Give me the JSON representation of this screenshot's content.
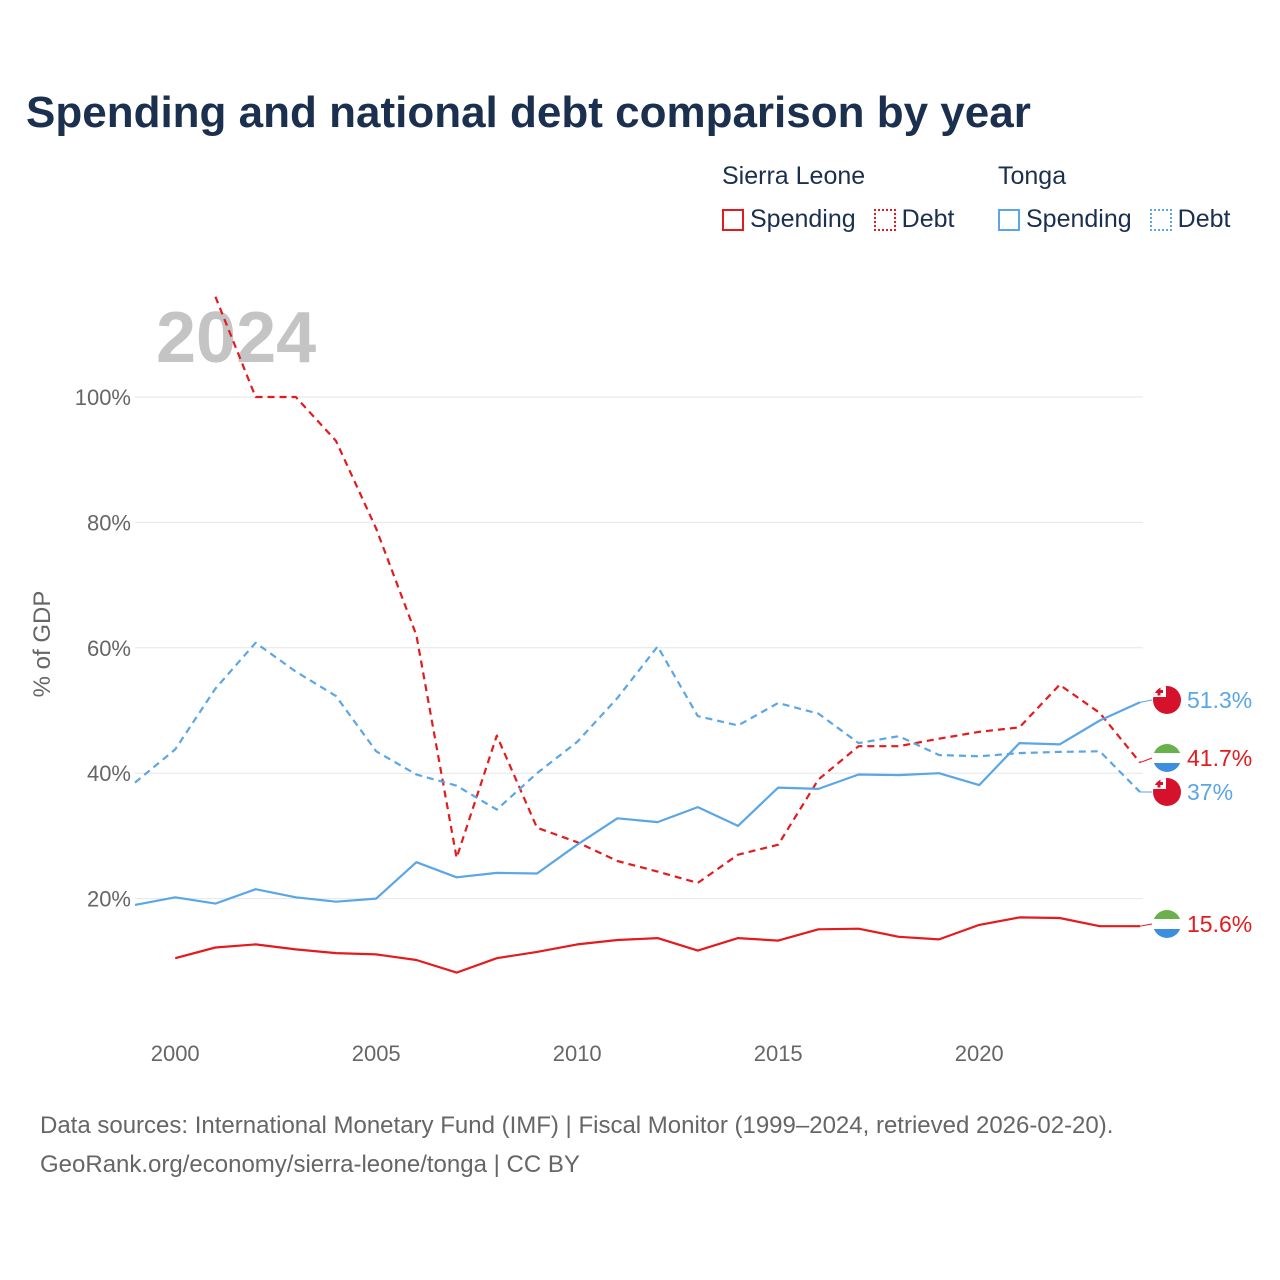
{
  "title": "Spending and national debt comparison by year",
  "legend": {
    "groups": [
      {
        "country": "Sierra Leone",
        "color": "#e41a1c",
        "items": [
          {
            "label": "Spending",
            "style": "solid"
          },
          {
            "label": "Debt",
            "style": "dotted"
          }
        ]
      },
      {
        "country": "Tonga",
        "color": "#5aa6e6",
        "items": [
          {
            "label": "Spending",
            "style": "solid"
          },
          {
            "label": "Debt",
            "style": "dotted"
          }
        ]
      }
    ]
  },
  "sources": {
    "line1": "Data sources: International Monetary Fund (IMF) | Fiscal Monitor (1999–2024, retrieved 2026-02-20).",
    "line2": "GeoRank.org/economy/sierra-leone/tonga | CC BY"
  },
  "chart_data": {
    "type": "line",
    "year_label": "2024",
    "ylabel": "% of GDP",
    "xlim": [
      1999,
      2024
    ],
    "ylim": [
      0,
      120
    ],
    "x_ticks": [
      2000,
      2005,
      2010,
      2015,
      2020
    ],
    "x_tick_labels": [
      "2000",
      "2005",
      "2010",
      "2015",
      "2020"
    ],
    "y_ticks": [
      20,
      40,
      60,
      80,
      100
    ],
    "y_tick_labels": [
      "20%",
      "40%",
      "60%",
      "80%",
      "100%"
    ],
    "grid": true,
    "series": [
      {
        "name": "Sierra Leone Spending",
        "country": "Sierra Leone",
        "measure": "Spending",
        "color": "#e41a1c",
        "dash": "solid",
        "x": [
          2000,
          2001,
          2002,
          2003,
          2004,
          2005,
          2006,
          2007,
          2008,
          2009,
          2010,
          2011,
          2012,
          2013,
          2014,
          2015,
          2016,
          2017,
          2018,
          2019,
          2020,
          2021,
          2022,
          2023,
          2024
        ],
        "values": [
          10.5,
          12.2,
          12.7,
          11.9,
          11.3,
          11.1,
          10.2,
          8.2,
          10.5,
          11.5,
          12.7,
          13.4,
          13.7,
          11.7,
          13.7,
          13.3,
          15.1,
          15.2,
          13.9,
          13.5,
          15.8,
          17.0,
          16.9,
          15.6,
          15.6
        ],
        "end_label": "15.6%"
      },
      {
        "name": "Sierra Leone Debt",
        "country": "Sierra Leone",
        "measure": "Debt",
        "color": "#e41a1c",
        "dash": "dashed",
        "x": [
          2001,
          2002,
          2003,
          2004,
          2005,
          2006,
          2007,
          2008,
          2009,
          2010,
          2011,
          2012,
          2013,
          2014,
          2015,
          2016,
          2017,
          2018,
          2019,
          2020,
          2021,
          2022,
          2023,
          2024
        ],
        "values": [
          116,
          100,
          100,
          93,
          79,
          62,
          26.5,
          46,
          31.3,
          29,
          26,
          24.3,
          22.5,
          27,
          28.6,
          39,
          44.3,
          44.3,
          45.5,
          46.6,
          47.3,
          54.1,
          49.6,
          41.7
        ],
        "end_label": "41.7%"
      },
      {
        "name": "Tonga Spending",
        "country": "Tonga",
        "measure": "Spending",
        "color": "#5aa6e6",
        "dash": "solid",
        "x": [
          1999,
          2000,
          2001,
          2002,
          2003,
          2004,
          2005,
          2006,
          2007,
          2008,
          2009,
          2010,
          2011,
          2012,
          2013,
          2014,
          2015,
          2016,
          2017,
          2018,
          2019,
          2020,
          2021,
          2022,
          2023,
          2024
        ],
        "values": [
          19.0,
          20.2,
          19.2,
          21.5,
          20.2,
          19.5,
          20.0,
          25.8,
          23.4,
          24.1,
          24.0,
          28.6,
          32.8,
          32.2,
          34.6,
          31.6,
          37.7,
          37.5,
          39.8,
          39.7,
          40.0,
          38.1,
          44.8,
          44.6,
          48.4,
          51.3
        ],
        "end_label": "51.3%"
      },
      {
        "name": "Tonga Debt",
        "country": "Tonga",
        "measure": "Debt",
        "color": "#5aa6e6",
        "dash": "dashed",
        "x": [
          1999,
          2000,
          2001,
          2002,
          2003,
          2004,
          2005,
          2006,
          2007,
          2008,
          2009,
          2010,
          2011,
          2012,
          2013,
          2014,
          2015,
          2016,
          2017,
          2018,
          2019,
          2020,
          2021,
          2022,
          2023,
          2024
        ],
        "values": [
          38.5,
          43.8,
          53.5,
          60.8,
          56.2,
          52.3,
          43.5,
          39.8,
          38.0,
          34.2,
          40.0,
          45.0,
          52.0,
          60.2,
          49.1,
          47.6,
          51.2,
          49.5,
          44.8,
          45.9,
          42.9,
          42.7,
          43.2,
          43.4,
          43.5,
          37.0
        ],
        "end_label": "37%"
      }
    ],
    "end_markers": [
      {
        "series": "Tonga Spending",
        "flag": "tonga-flag"
      },
      {
        "series": "Sierra Leone Debt",
        "flag": "sierra-leone-flag"
      },
      {
        "series": "Tonga Debt",
        "flag": "tonga-flag"
      },
      {
        "series": "Sierra Leone Spending",
        "flag": "sierra-leone-flag"
      }
    ]
  }
}
